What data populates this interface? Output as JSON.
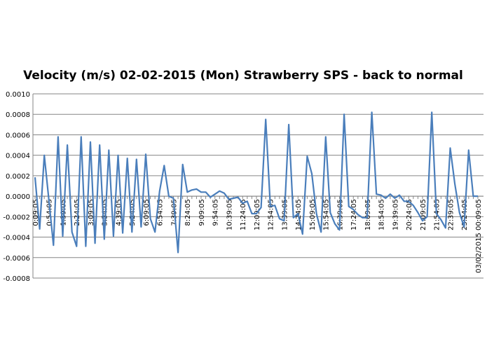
{
  "chart_data": {
    "type": "line",
    "title": "Velocity (m/s) 02-02-2015 (Mon) Strawberry SPS - back to normal",
    "xlabel": "",
    "ylabel": "",
    "ylim": [
      -0.0008,
      0.001
    ],
    "yticks": [
      "0.0010",
      "0.0008",
      "0.0006",
      "0.0004",
      "0.0002",
      "0.0000",
      "-0.0002",
      "-0.0004",
      "-0.0006",
      "-0.0008"
    ],
    "ytick_values": [
      0.001,
      0.0008,
      0.0006,
      0.0004,
      0.0002,
      0,
      -0.0002,
      -0.0004,
      -0.0006,
      -0.0008
    ],
    "grid": true,
    "legend": "none",
    "color": "#4a7ebb",
    "x_tick_every": 3,
    "x_tick_labels": [
      "0:09:05",
      "0:54:05",
      "1:39:05",
      "2:24:05",
      "3:09:05",
      "3:54:05",
      "4:39:05",
      "5:24:05",
      "6:09:05",
      "6:54:05",
      "7:39:05",
      "8:24:05",
      "9:09:05",
      "9:54:05",
      "10:39:05",
      "11:24:05",
      "12:09:05",
      "12:54:05",
      "13:39:05",
      "14:24:05",
      "15:09:05",
      "15:54:05",
      "16:39:05",
      "17:24:05",
      "18:09:05",
      "18:54:05",
      "19:39:05",
      "20:24:05",
      "21:09:05",
      "21:54:05",
      "22:39:05",
      "23:24:05",
      "03/02/2015 00:09:05"
    ],
    "values": [
      0.000185,
      -0.00032,
      0.0004,
      -4e-05,
      -0.00048,
      0.00058,
      -0.00039,
      0.0005,
      -0.00035,
      -0.00049,
      0.00058,
      -0.00049,
      0.00053,
      -0.00046,
      0.0005,
      -0.00042,
      0.00045,
      -0.00039,
      0.0004,
      -0.00036,
      0.00037,
      -0.00035,
      0.00036,
      -0.0003,
      0.00041,
      -0.00022,
      -0.00035,
      5e-05,
      0.0003,
      0.0,
      -2e-05,
      -0.00055,
      0.00031,
      4e-05,
      6e-05,
      7e-05,
      4e-05,
      4e-05,
      -1e-05,
      2e-05,
      5e-05,
      3e-05,
      -3e-05,
      -2e-05,
      -1e-05,
      -7e-05,
      -5e-05,
      -0.00017,
      -0.00017,
      -0.00011,
      0.00075,
      -0.0001,
      -9e-05,
      -0.00022,
      -0.00024,
      0.0007,
      -0.00021,
      -0.00017,
      -0.00037,
      0.00039,
      0.00022,
      -0.00017,
      -0.00035,
      0.00058,
      -0.00016,
      -0.00027,
      -0.00033,
      0.0008,
      -0.0001,
      -0.00013,
      -0.00018,
      -0.00021,
      -0.00021,
      0.00082,
      2e-05,
      1e-05,
      -2e-05,
      2e-05,
      -2e-05,
      1e-05,
      -5e-05,
      -5e-05,
      -9e-05,
      -0.00016,
      -0.00024,
      -0.0002,
      0.00082,
      -0.00017,
      -0.00023,
      -0.00031,
      0.00047,
      0.00012,
      -0.00016,
      -0.0003,
      0.00045,
      0.0,
      0.0
    ]
  }
}
